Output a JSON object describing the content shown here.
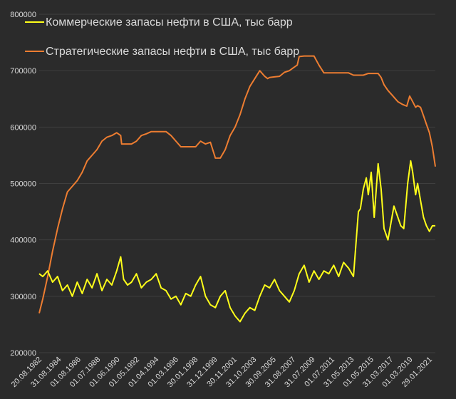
{
  "chart_data": {
    "type": "line",
    "title": "",
    "xlabel": "",
    "ylabel": "",
    "ylim": [
      200000,
      800000
    ],
    "y_ticks": [
      "200000",
      "300000",
      "400000",
      "500000",
      "600000",
      "700000",
      "800000"
    ],
    "x_tick_labels": [
      "20.08.1982",
      "31.08.1984",
      "01.08.1986",
      "01.07.1988",
      "01.06.1990",
      "01.05.1992",
      "01.04.1994",
      "01.03.1996",
      "30.01.1998",
      "31.12.1999",
      "30.11.2001",
      "31.10.2003",
      "30.09.2005",
      "31.08.2007",
      "31.07.2009",
      "01.07.2011",
      "31.05.2013",
      "01.05.2015",
      "31.03.2017",
      "01.03.2019",
      "29.01.2021"
    ],
    "grid": "horizontal",
    "legend_position": "top-left",
    "background": "#2b2b2b",
    "series": [
      {
        "name": "Коммерческие запасы нефти в США, тыс барр",
        "color": "#ffff1a",
        "x": [
          1982.64,
          1983.0,
          1983.5,
          1984.0,
          1984.5,
          1985.0,
          1985.5,
          1986.0,
          1986.5,
          1987.0,
          1987.5,
          1988.0,
          1988.5,
          1989.0,
          1989.5,
          1990.0,
          1990.5,
          1990.9,
          1991.2,
          1991.6,
          1992.0,
          1992.5,
          1993.0,
          1993.5,
          1994.0,
          1994.5,
          1995.0,
          1995.5,
          1996.0,
          1996.5,
          1997.0,
          1997.5,
          1998.0,
          1998.5,
          1999.0,
          1999.5,
          2000.0,
          2000.5,
          2001.0,
          2001.5,
          2002.0,
          2002.5,
          2003.0,
          2003.5,
          2004.0,
          2004.5,
          2005.0,
          2005.5,
          2006.0,
          2006.5,
          2007.0,
          2007.5,
          2008.0,
          2008.5,
          2009.0,
          2009.5,
          2010.0,
          2010.5,
          2011.0,
          2011.5,
          2012.0,
          2012.5,
          2013.0,
          2013.5,
          2014.0,
          2014.5,
          2015.0,
          2015.2,
          2015.5,
          2015.8,
          2016.0,
          2016.3,
          2016.6,
          2017.0,
          2017.3,
          2017.6,
          2018.0,
          2018.3,
          2018.6,
          2019.0,
          2019.3,
          2019.6,
          2020.0,
          2020.3,
          2020.5,
          2020.8,
          2021.0,
          2021.3,
          2021.6,
          2021.9,
          2022.2,
          2022.5,
          2022.8
        ],
        "values": [
          340000,
          335000,
          345000,
          325000,
          335000,
          310000,
          320000,
          300000,
          325000,
          305000,
          330000,
          315000,
          340000,
          310000,
          330000,
          320000,
          345000,
          370000,
          330000,
          320000,
          325000,
          340000,
          315000,
          325000,
          330000,
          340000,
          315000,
          310000,
          295000,
          300000,
          285000,
          305000,
          300000,
          320000,
          335000,
          300000,
          285000,
          280000,
          300000,
          310000,
          280000,
          265000,
          255000,
          270000,
          280000,
          275000,
          300000,
          320000,
          315000,
          330000,
          310000,
          300000,
          290000,
          310000,
          340000,
          355000,
          325000,
          345000,
          330000,
          345000,
          340000,
          355000,
          335000,
          360000,
          350000,
          335000,
          450000,
          455000,
          490000,
          510000,
          480000,
          520000,
          440000,
          535000,
          490000,
          420000,
          400000,
          430000,
          460000,
          440000,
          425000,
          420000,
          500000,
          540000,
          520000,
          480000,
          500000,
          470000,
          440000,
          425000,
          415000,
          425000,
          425000
        ]
      },
      {
        "name": "Стратегические запасы нефти в США, тыс барр",
        "color": "#ed7d31",
        "x": [
          1982.64,
          1983.0,
          1983.5,
          1984.0,
          1984.5,
          1985.0,
          1985.5,
          1986.0,
          1986.5,
          1987.0,
          1987.5,
          1988.0,
          1988.5,
          1989.0,
          1989.5,
          1990.0,
          1990.5,
          1990.9,
          1991.0,
          1991.5,
          1992.0,
          1992.5,
          1993.0,
          1993.5,
          1994.0,
          1994.5,
          1995.0,
          1995.5,
          1996.0,
          1996.5,
          1997.0,
          1997.5,
          1998.0,
          1998.5,
          1999.0,
          1999.5,
          2000.0,
          2000.5,
          2000.8,
          2001.0,
          2001.5,
          2002.0,
          2002.5,
          2003.0,
          2003.5,
          2004.0,
          2004.5,
          2005.0,
          2005.5,
          2005.8,
          2006.0,
          2006.5,
          2007.0,
          2007.5,
          2008.0,
          2008.4,
          2008.8,
          2009.0,
          2009.5,
          2010.0,
          2010.5,
          2011.0,
          2011.5,
          2012.0,
          2012.5,
          2013.0,
          2013.5,
          2014.0,
          2014.5,
          2015.0,
          2015.5,
          2016.0,
          2016.5,
          2017.0,
          2017.3,
          2017.6,
          2018.0,
          2018.5,
          2019.0,
          2019.5,
          2019.9,
          2020.2,
          2020.5,
          2020.8,
          2021.0,
          2021.3,
          2021.6,
          2021.9,
          2022.2,
          2022.5,
          2022.8
        ],
        "values": [
          270000,
          295000,
          335000,
          380000,
          420000,
          455000,
          485000,
          495000,
          505000,
          520000,
          540000,
          550000,
          560000,
          575000,
          582000,
          585000,
          590000,
          585000,
          570000,
          570000,
          570000,
          575000,
          585000,
          588000,
          592000,
          592000,
          592000,
          592000,
          585000,
          575000,
          565000,
          565000,
          565000,
          565000,
          575000,
          570000,
          573000,
          545000,
          545000,
          545000,
          560000,
          585000,
          600000,
          622000,
          650000,
          672000,
          686000,
          700000,
          690000,
          686000,
          688000,
          689000,
          690000,
          697000,
          700000,
          705000,
          710000,
          725000,
          726000,
          726000,
          726000,
          710000,
          696000,
          696000,
          696000,
          696000,
          696000,
          696000,
          692000,
          692000,
          692000,
          695000,
          695000,
          695000,
          688000,
          675000,
          665000,
          655000,
          645000,
          640000,
          637000,
          655000,
          645000,
          635000,
          638000,
          635000,
          620000,
          605000,
          590000,
          565000,
          530000
        ]
      }
    ]
  }
}
